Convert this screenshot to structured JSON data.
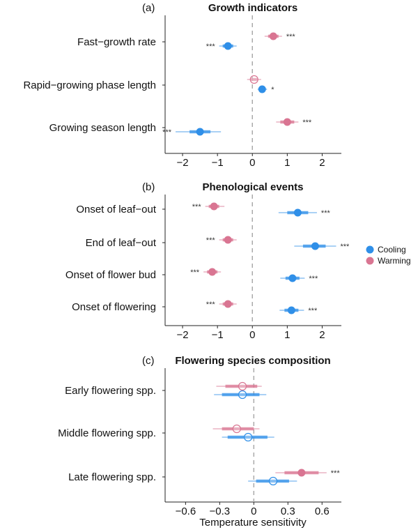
{
  "legend": [
    {
      "name": "Cooling",
      "color": "#2f8fe8"
    },
    {
      "name": "Warming",
      "color": "#d97592"
    }
  ],
  "xlabel": "Temperature sensitivity",
  "chart_data": [
    {
      "type": "forest",
      "panel": "(a)",
      "title": "Growth indicators",
      "categories": [
        "Fast−growth rate",
        "Rapid−growing phase length",
        "Growing season length"
      ],
      "xlim": [
        -2.5,
        2.55
      ],
      "ticks": [
        -2,
        -1,
        0,
        1,
        2
      ],
      "tick_labels": [
        "−2",
        "−1",
        "0",
        "1",
        "2"
      ],
      "series": [
        {
          "name": "Warming",
          "values": [
            0.6,
            0.05,
            1.0
          ],
          "ci_inner": [
            [
              0.45,
              0.75
            ],
            [
              -0.05,
              0.15
            ],
            [
              0.8,
              1.2
            ]
          ],
          "ci_outer": [
            [
              0.35,
              0.85
            ],
            [
              -0.15,
              0.25
            ],
            [
              0.68,
              1.32
            ]
          ],
          "significance": [
            "***",
            "",
            "***"
          ],
          "filled": [
            true,
            false,
            true
          ]
        },
        {
          "name": "Cooling",
          "values": [
            -0.7,
            0.28,
            -1.5
          ],
          "ci_inner": [
            [
              -0.85,
              -0.55
            ],
            [
              0.2,
              0.36
            ],
            [
              -1.8,
              -1.2
            ]
          ],
          "ci_outer": [
            [
              -0.95,
              -0.45
            ],
            [
              0.15,
              0.42
            ],
            [
              -2.2,
              -0.9
            ]
          ],
          "significance": [
            "***",
            "*",
            "***"
          ],
          "filled": [
            true,
            true,
            true
          ]
        }
      ]
    },
    {
      "type": "forest",
      "panel": "(b)",
      "title": "Phenological events",
      "categories": [
        "Onset of leaf−out",
        "End of leaf−out",
        "Onset of flower bud",
        "Onset of flowering"
      ],
      "xlim": [
        -2.5,
        2.55
      ],
      "ticks": [
        -2,
        -1,
        0,
        1,
        2
      ],
      "tick_labels": [
        "−2",
        "−1",
        "0",
        "1",
        "2"
      ],
      "series": [
        {
          "name": "Warming",
          "values": [
            -1.1,
            -0.7,
            -1.15,
            -0.7
          ],
          "ci_inner": [
            [
              -1.25,
              -0.95
            ],
            [
              -0.85,
              -0.55
            ],
            [
              -1.3,
              -1.0
            ],
            [
              -0.85,
              -0.55
            ]
          ],
          "ci_outer": [
            [
              -1.35,
              -0.8
            ],
            [
              -0.95,
              -0.45
            ],
            [
              -1.4,
              -0.9
            ],
            [
              -0.95,
              -0.45
            ]
          ],
          "significance": [
            "***",
            "***",
            "***",
            "***"
          ],
          "filled": [
            true,
            true,
            true,
            true
          ]
        },
        {
          "name": "Cooling",
          "values": [
            1.3,
            1.8,
            1.15,
            1.12
          ],
          "ci_inner": [
            [
              1.0,
              1.6
            ],
            [
              1.45,
              2.1
            ],
            [
              0.95,
              1.35
            ],
            [
              0.92,
              1.32
            ]
          ],
          "ci_outer": [
            [
              0.75,
              1.85
            ],
            [
              1.2,
              2.4
            ],
            [
              0.8,
              1.5
            ],
            [
              0.78,
              1.48
            ]
          ],
          "significance": [
            "***",
            "***",
            "***",
            "***"
          ],
          "filled": [
            true,
            true,
            true,
            true
          ]
        }
      ]
    },
    {
      "type": "forest",
      "panel": "(c)",
      "title": "Flowering species composition",
      "categories": [
        "Early flowering spp.",
        "Middle flowering spp.",
        "Late flowering spp."
      ],
      "xlim": [
        -0.78,
        0.77
      ],
      "ticks": [
        -0.6,
        -0.3,
        0,
        0.3,
        0.6
      ],
      "tick_labels": [
        "−0.6",
        "−0.3",
        "0",
        "0.3",
        "0.6"
      ],
      "series": [
        {
          "name": "Warming",
          "values": [
            -0.1,
            -0.15,
            0.42
          ],
          "ci_inner": [
            [
              -0.25,
              0.03
            ],
            [
              -0.28,
              0.0
            ],
            [
              0.27,
              0.57
            ]
          ],
          "ci_outer": [
            [
              -0.33,
              0.07
            ],
            [
              -0.36,
              0.05
            ],
            [
              0.19,
              0.64
            ]
          ],
          "significance": [
            "",
            "",
            "***"
          ],
          "filled": [
            false,
            false,
            true
          ]
        },
        {
          "name": "Cooling",
          "values": [
            -0.1,
            -0.05,
            0.17
          ],
          "ci_inner": [
            [
              -0.28,
              0.05
            ],
            [
              -0.23,
              0.12
            ],
            [
              0.02,
              0.31
            ]
          ],
          "ci_outer": [
            [
              -0.35,
              0.11
            ],
            [
              -0.28,
              0.18
            ],
            [
              -0.05,
              0.38
            ]
          ],
          "significance": [
            "",
            "",
            ""
          ],
          "filled": [
            false,
            false,
            false
          ]
        }
      ]
    }
  ]
}
